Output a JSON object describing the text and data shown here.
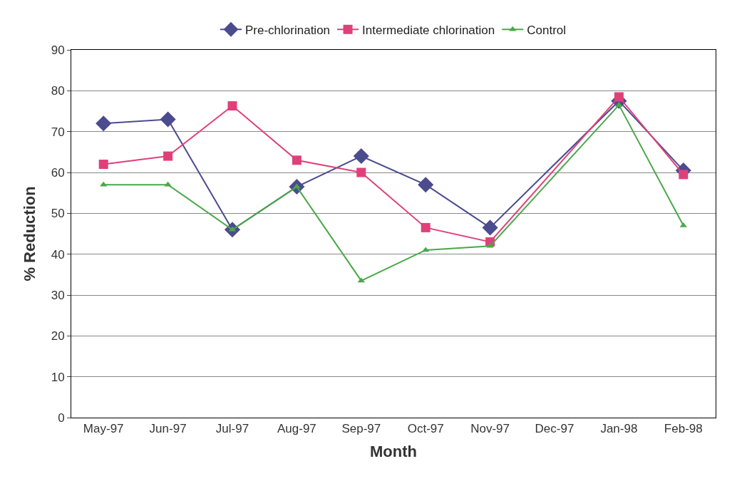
{
  "chart_data": {
    "type": "line",
    "xlabel": "Month",
    "ylabel": "% Reduction",
    "categories": [
      "May-97",
      "Jun-97",
      "Jul-97",
      "Aug-97",
      "Sep-97",
      "Oct-97",
      "Nov-97",
      "Dec-97",
      "Jan-98",
      "Feb-98"
    ],
    "series": [
      {
        "name": "Pre-chlorination",
        "color": "#4b4b8f",
        "marker": "diamond",
        "values": [
          72,
          73,
          46,
          56.5,
          64,
          57,
          46.5,
          null,
          77.5,
          60.5
        ]
      },
      {
        "name": "Intermediate chlorination",
        "color": "#e0407a",
        "marker": "square",
        "values": [
          62,
          64,
          76.3,
          63,
          60,
          46.5,
          43,
          null,
          78.5,
          59.5
        ]
      },
      {
        "name": "Control",
        "color": "#4aa84a",
        "marker": "triangle",
        "values": [
          57,
          57,
          46,
          56.5,
          33.5,
          41,
          42,
          null,
          76.5,
          47
        ]
      }
    ],
    "ylim": [
      0,
      90
    ],
    "yticks": [
      0,
      10,
      20,
      30,
      40,
      50,
      60,
      70,
      80,
      90
    ],
    "grid": "y",
    "legend": "top",
    "line_style": "solid"
  }
}
